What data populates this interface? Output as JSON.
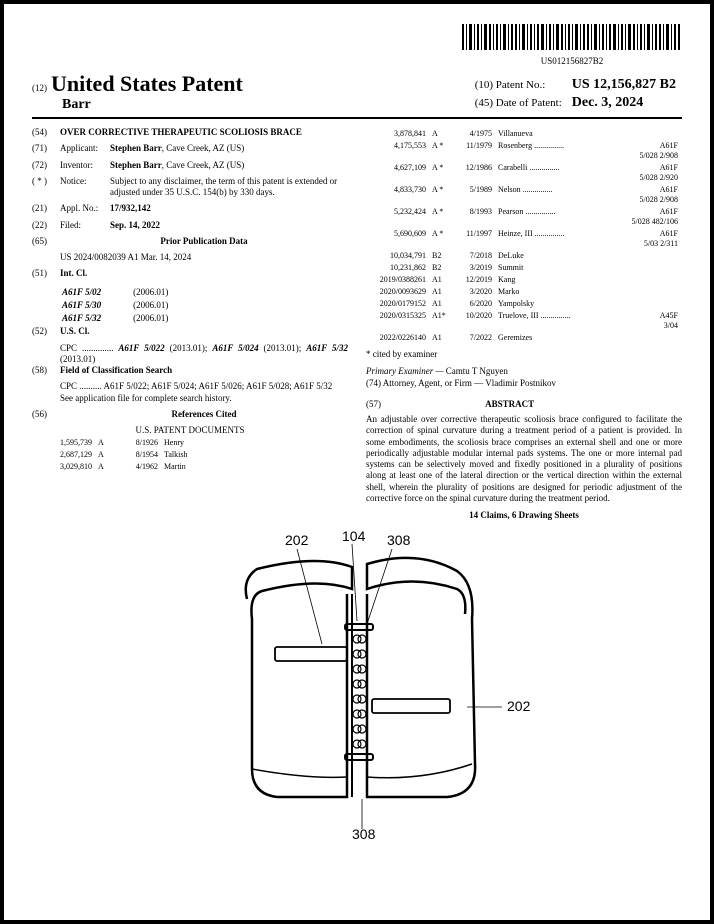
{
  "barcode_text": "US012156827B2",
  "header": {
    "pre12": "(12)",
    "title": "United States Patent",
    "inventor_name": "Barr",
    "patent_no_label": "(10) Patent No.:",
    "patent_no": "US 12,156,827 B2",
    "date_label": "(45) Date of Patent:",
    "date": "Dec. 3, 2024"
  },
  "left": {
    "f54_code": "(54)",
    "f54_title": "OVER CORRECTIVE THERAPEUTIC SCOLIOSIS BRACE",
    "f71_code": "(71)",
    "f71_label": "Applicant:",
    "f71_val": "Stephen Barr, Cave Creek, AZ (US)",
    "f72_code": "(72)",
    "f72_label": "Inventor:",
    "f72_val": "Stephen Barr, Cave Creek, AZ (US)",
    "notice_code": "( * )",
    "notice_label": "Notice:",
    "notice_val": "Subject to any disclaimer, the term of this patent is extended or adjusted under 35 U.S.C. 154(b) by 330 days.",
    "f21_code": "(21)",
    "f21_label": "Appl. No.:",
    "f21_val": "17/932,142",
    "f22_code": "(22)",
    "f22_label": "Filed:",
    "f22_val": "Sep. 14, 2022",
    "f65_code": "(65)",
    "f65_title": "Prior Publication Data",
    "f65_val": "US 2024/0082039 A1    Mar. 14, 2024",
    "f51_code": "(51)",
    "f51_label": "Int. Cl.",
    "f51_rows": [
      {
        "c": "A61F 5/02",
        "y": "(2006.01)"
      },
      {
        "c": "A61F 5/30",
        "y": "(2006.01)"
      },
      {
        "c": "A61F 5/32",
        "y": "(2006.01)"
      }
    ],
    "f52_code": "(52)",
    "f52_label": "U.S. Cl.",
    "f52_val": "CPC .............. A61F 5/022 (2013.01); A61F 5/024 (2013.01); A61F 5/32 (2013.01)",
    "f58_code": "(58)",
    "f58_label": "Field of Classification Search",
    "f58_val1": "CPC .......... A61F 5/022; A61F 5/024; A61F 5/026; A61F 5/028; A61F 5/32",
    "f58_val2": "See application file for complete search history.",
    "f56_code": "(56)",
    "f56_title": "References Cited",
    "f56_sub": "U.S. PATENT DOCUMENTS",
    "refs_left": [
      {
        "n": "1,595,739",
        "t": "A",
        "d": "8/1926",
        "name": "Henry"
      },
      {
        "n": "2,687,129",
        "t": "A",
        "d": "8/1954",
        "name": "Talkish"
      },
      {
        "n": "3,029,810",
        "t": "A",
        "d": "4/1962",
        "name": "Martin"
      }
    ]
  },
  "right": {
    "refs": [
      {
        "n": "3,878,841",
        "t": "A",
        "d": "4/1975",
        "name": "Villanueva",
        "cls": ""
      },
      {
        "n": "4,175,553",
        "t": "A *",
        "d": "11/1979",
        "name": "Rosenberg",
        "cls": "A61F 5/028 2/908"
      },
      {
        "n": "4,627,109",
        "t": "A *",
        "d": "12/1986",
        "name": "Carabelli",
        "cls": "A61F 5/028 2/920"
      },
      {
        "n": "4,833,730",
        "t": "A *",
        "d": "5/1989",
        "name": "Nelson",
        "cls": "A61F 5/028 2/908"
      },
      {
        "n": "5,232,424",
        "t": "A *",
        "d": "8/1993",
        "name": "Pearson",
        "cls": "A61F 5/028 482/106"
      },
      {
        "n": "5,690,609",
        "t": "A *",
        "d": "11/1997",
        "name": "Heinze, III",
        "cls": "A61F 5/03 2/311"
      },
      {
        "n": "10,034,791",
        "t": "B2",
        "d": "7/2018",
        "name": "DeLuke",
        "cls": ""
      },
      {
        "n": "10,231,862",
        "t": "B2",
        "d": "3/2019",
        "name": "Summit",
        "cls": ""
      },
      {
        "n": "2019/0388261",
        "t": "A1",
        "d": "12/2019",
        "name": "Kang",
        "cls": ""
      },
      {
        "n": "2020/0093629",
        "t": "A1",
        "d": "3/2020",
        "name": "Marko",
        "cls": ""
      },
      {
        "n": "2020/0179152",
        "t": "A1",
        "d": "6/2020",
        "name": "Yampolsky",
        "cls": ""
      },
      {
        "n": "2020/0315325",
        "t": "A1*",
        "d": "10/2020",
        "name": "Truelove, III",
        "cls": "A45F 3/04"
      },
      {
        "n": "2022/0226140",
        "t": "A1",
        "d": "7/2022",
        "name": "Geremizes",
        "cls": ""
      }
    ],
    "cited_note": "* cited by examiner",
    "examiner_label": "Primary Examiner —",
    "examiner": "Camtu T Nguyen",
    "attorney_label": "(74) Attorney, Agent, or Firm —",
    "attorney": "Vladimir Postnikov",
    "abstract_code": "(57)",
    "abstract_title": "ABSTRACT",
    "abstract": "An adjustable over corrective therapeutic scoliosis brace configured to facilitate the correction of spinal curvature during a treatment period of a patient is provided. In some embodiments, the scoliosis brace comprises an external shell and one or more periodically adjustable modular internal pads systems. The one or more internal pad systems can be selectively moved and fixedly positioned in a plurality of positions along at least one of the lateral direction or the vertical direction within the external shell, wherein the plurality of positions are designed for periodic adjustment of the corrective force on the spinal curvature during the treatment period.",
    "claims_note": "14 Claims, 6 Drawing Sheets"
  },
  "figure": {
    "labels": {
      "a": "202",
      "b": "104",
      "c": "308",
      "d": "202",
      "e": "308"
    }
  }
}
